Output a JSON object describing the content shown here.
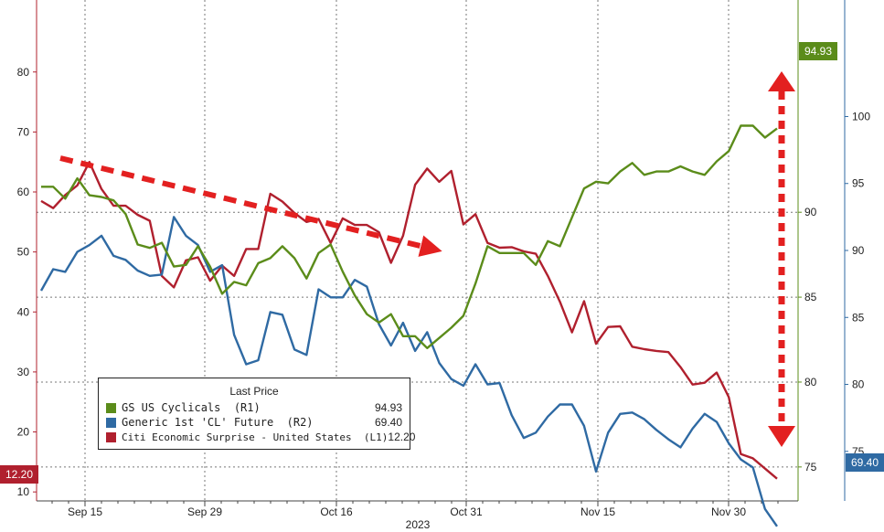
{
  "chart_data": {
    "type": "line",
    "xlabel": "2023",
    "x_ticks": [
      "Sep 15",
      "Sep 29",
      "Oct 16",
      "Oct 31",
      "Nov 15",
      "Nov 30"
    ],
    "left_axis": {
      "ticks": [
        10,
        20,
        30,
        40,
        50,
        60,
        70,
        80
      ],
      "range": [
        8.5,
        92
      ]
    },
    "right1_axis": {
      "ticks": [
        75,
        80,
        85,
        90
      ],
      "range": [
        73.0,
        102.5
      ]
    },
    "right2_axis": {
      "ticks": [
        75,
        80,
        85,
        90,
        95,
        100
      ],
      "range": [
        71.3,
        108.7
      ]
    },
    "grid": true,
    "legend": {
      "title": "Last Price",
      "placement": "bottom-left",
      "items": [
        {
          "name": "GS US Cyclicals  (R1)",
          "value": "94.93",
          "color": "#5b8c1a"
        },
        {
          "name": "Generic 1st 'CL' Future  (R2)",
          "value": "69.40",
          "color": "#2f6aa3"
        },
        {
          "name": "Citi Economic Surprise - United States  (L1)",
          "value": "12.20",
          "color": "#b0202e"
        }
      ]
    },
    "badges": {
      "r1": "94.93",
      "r2": "69.40",
      "l1": "12.20"
    },
    "series": [
      {
        "name": "GS US Cyclicals",
        "axis": "R1",
        "color": "#5b8c1a",
        "values": [
          91.5,
          91.5,
          90.8,
          92.0,
          91.0,
          90.9,
          90.7,
          89.9,
          88.1,
          87.9,
          88.2,
          86.8,
          86.9,
          88.0,
          86.8,
          85.2,
          85.9,
          85.7,
          87.0,
          87.3,
          88.0,
          87.3,
          86.1,
          87.6,
          88.1,
          86.5,
          85.1,
          84.0,
          83.5,
          84.0,
          82.7,
          82.7,
          82.0,
          82.6,
          83.2,
          83.9,
          85.8,
          88.0,
          87.6,
          87.6,
          87.6,
          86.9,
          88.3,
          88.0,
          89.7,
          91.4,
          91.8,
          91.7,
          92.4,
          92.9,
          92.2,
          92.4,
          92.4,
          92.7,
          92.4,
          92.2,
          93.0,
          93.6,
          95.1,
          95.1,
          94.4,
          94.93
        ]
      },
      {
        "name": "Generic 1st 'CL' Future",
        "axis": "R2",
        "color": "#2f6aa3",
        "values": [
          87.0,
          88.6,
          88.4,
          89.9,
          90.4,
          91.1,
          89.6,
          89.3,
          88.5,
          88.1,
          88.2,
          92.5,
          91.1,
          90.4,
          88.4,
          88.9,
          83.7,
          81.5,
          81.8,
          85.4,
          85.2,
          82.6,
          82.2,
          87.1,
          86.5,
          86.5,
          87.8,
          87.3,
          84.5,
          82.9,
          84.6,
          82.5,
          83.9,
          81.6,
          80.4,
          79.9,
          81.5,
          80.0,
          80.1,
          77.7,
          76.0,
          76.4,
          77.6,
          78.5,
          78.5,
          76.9,
          73.5,
          76.4,
          77.8,
          77.9,
          77.4,
          76.6,
          75.9,
          75.3,
          76.7,
          77.8,
          77.2,
          75.6,
          74.4,
          73.8,
          70.7,
          69.4
        ]
      },
      {
        "name": "Citi Economic Surprise - United States",
        "axis": "L1",
        "color": "#b0202e",
        "values": [
          58.5,
          57.3,
          59.5,
          61.1,
          65.0,
          60.5,
          57.7,
          57.7,
          56.2,
          55.2,
          46.0,
          44.1,
          48.6,
          49.1,
          45.2,
          47.7,
          46.0,
          50.5,
          50.5,
          59.7,
          58.4,
          56.5,
          55.0,
          55.5,
          51.5,
          55.6,
          54.5,
          54.5,
          53.3,
          48.2,
          52.7,
          61.2,
          63.9,
          61.7,
          63.5,
          54.6,
          56.3,
          51.5,
          50.7,
          50.8,
          50.1,
          49.7,
          46.0,
          41.7,
          36.6,
          41.8,
          34.7,
          37.5,
          37.6,
          34.2,
          33.8,
          33.5,
          33.3,
          30.8,
          27.9,
          28.2,
          29.9,
          25.8,
          16.3,
          15.6,
          13.9,
          12.2
        ]
      }
    ]
  }
}
